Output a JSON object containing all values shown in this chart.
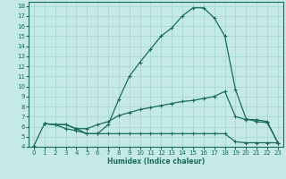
{
  "xlabel": "Humidex (Indice chaleur)",
  "bg_color": "#c5eae6",
  "grid_color": "#a8d8d2",
  "line_color": "#1a6b5a",
  "xlim": [
    -0.5,
    23.5
  ],
  "ylim": [
    4,
    18.4
  ],
  "xticks": [
    0,
    1,
    2,
    3,
    4,
    5,
    6,
    7,
    8,
    9,
    10,
    11,
    12,
    13,
    14,
    15,
    16,
    17,
    18,
    19,
    20,
    21,
    22,
    23
  ],
  "yticks": [
    4,
    5,
    6,
    7,
    8,
    9,
    10,
    11,
    12,
    13,
    14,
    15,
    16,
    17,
    18
  ],
  "line1_x": [
    0,
    1,
    2,
    3,
    4,
    5,
    6,
    7,
    8,
    9,
    10,
    11,
    12,
    13,
    14,
    15,
    16,
    17,
    18,
    19,
    20,
    21,
    22,
    23
  ],
  "line1_y": [
    4.1,
    6.3,
    6.2,
    5.8,
    5.6,
    5.3,
    5.3,
    6.2,
    8.7,
    11.0,
    12.4,
    13.7,
    15.0,
    15.8,
    17.0,
    17.8,
    17.8,
    16.8,
    15.0,
    9.7,
    6.8,
    6.5,
    6.4,
    4.4
  ],
  "line2_x": [
    1,
    2,
    3,
    4,
    5,
    6,
    7,
    8,
    9,
    10,
    11,
    12,
    13,
    14,
    15,
    16,
    17,
    18,
    19,
    20,
    21,
    22,
    23
  ],
  "line2_y": [
    6.3,
    6.2,
    6.2,
    5.8,
    5.8,
    6.2,
    6.5,
    7.1,
    7.4,
    7.7,
    7.9,
    8.1,
    8.3,
    8.5,
    8.6,
    8.8,
    9.0,
    9.5,
    7.0,
    6.7,
    6.7,
    6.5,
    4.4
  ],
  "line3_x": [
    1,
    2,
    3,
    4,
    5,
    6,
    7,
    8,
    9,
    10,
    11,
    12,
    13,
    14,
    15,
    16,
    17,
    18,
    19,
    20,
    21,
    22,
    23
  ],
  "line3_y": [
    6.3,
    6.2,
    6.2,
    5.8,
    5.3,
    5.3,
    5.3,
    5.3,
    5.3,
    5.3,
    5.3,
    5.3,
    5.3,
    5.3,
    5.3,
    5.3,
    5.3,
    5.3,
    4.5,
    4.4,
    4.4,
    4.4,
    4.4
  ]
}
